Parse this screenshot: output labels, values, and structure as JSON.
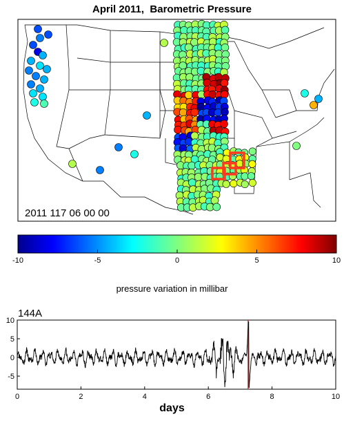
{
  "title": "April 2011,  Barometric Pressure",
  "map": {
    "timestamp": "2011 117 06 00 00",
    "station_categories": [
      {
        "name": "west coast",
        "color": "#4fa8f0"
      },
      {
        "name": "central band",
        "color": "#9ee07a"
      },
      {
        "name": "positive anomaly cluster",
        "color": "#c0392b"
      },
      {
        "name": "negative anomaly cluster",
        "color": "#1f4ed8"
      },
      {
        "name": "highlight boxes",
        "color": "#ff3b1f"
      }
    ]
  },
  "colorbar": {
    "label": "pressure variation in millibar",
    "ticks": [
      "-10",
      "-5",
      "0",
      "5",
      "10"
    ],
    "range": [
      -10,
      10
    ],
    "colormap": "jet"
  },
  "trace": {
    "station": "144A",
    "x_ticks": [
      "0",
      "2",
      "4",
      "6",
      "8",
      "10"
    ],
    "y_ticks": [
      "10",
      "5",
      "0",
      "-5"
    ],
    "xlabel": "days",
    "xlim": [
      0,
      10
    ],
    "ylim": [
      -8.5,
      10
    ],
    "marker_day": 7.25,
    "marker_color": "#cc2a2a"
  },
  "chart_data": [
    {
      "type": "scatter",
      "title": "April 2011,  Barometric Pressure",
      "annotation": "2011 117 06 00 00",
      "colorbar_label": "pressure variation in millibar",
      "colorbar_range": [
        -10,
        10
      ]
    },
    {
      "type": "line",
      "series": [
        {
          "name": "144A",
          "description": "pressure variation trace"
        }
      ],
      "x_range": [
        0,
        10
      ],
      "ylim": [
        -8.5,
        10
      ],
      "xlabel": "days",
      "peak_day": 7.27,
      "peak_values": [
        10,
        -8
      ]
    }
  ]
}
